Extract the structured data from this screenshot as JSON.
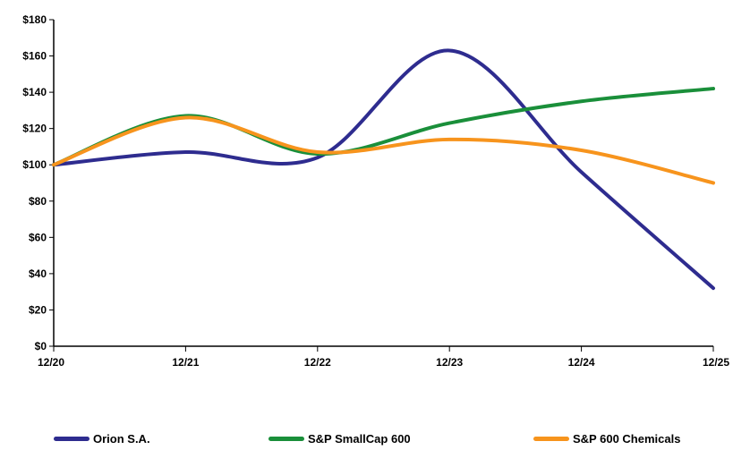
{
  "chart_data": {
    "type": "line",
    "title": "",
    "xlabel": "",
    "ylabel": "",
    "categories": [
      "12/20",
      "12/21",
      "12/22",
      "12/23",
      "12/24",
      "12/25"
    ],
    "y_ticks": [
      "$0",
      "$20",
      "$40",
      "$60",
      "$80",
      "$100",
      "$120",
      "$140",
      "$160",
      "$180"
    ],
    "ylim": [
      0,
      180
    ],
    "grid": false,
    "legend_position": "bottom",
    "series": [
      {
        "name": "Orion S.A.",
        "color": "#2e2c8f",
        "values": [
          100,
          107,
          104,
          163,
          96,
          32
        ]
      },
      {
        "name": "S&P SmallCap 600",
        "color": "#1a8f3a",
        "values": [
          100,
          127,
          106,
          123,
          135,
          142
        ]
      },
      {
        "name": "S&P 600 Chemicals",
        "color": "#f7941d",
        "values": [
          100,
          126,
          107,
          114,
          108,
          90
        ]
      }
    ]
  }
}
